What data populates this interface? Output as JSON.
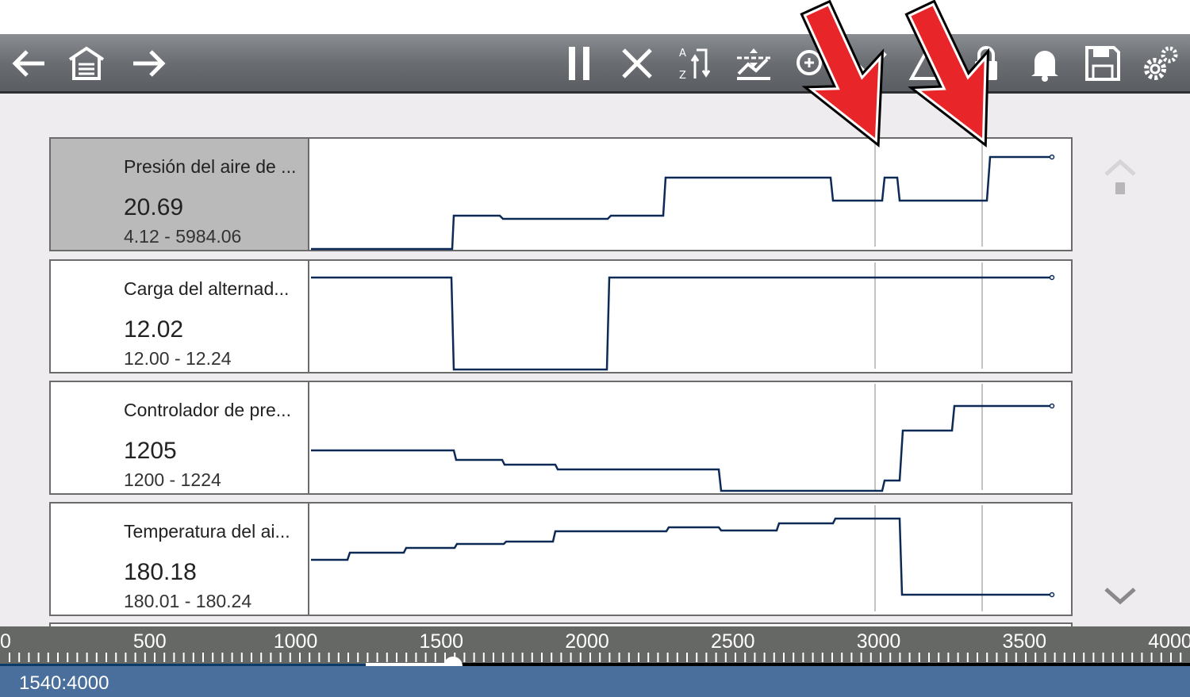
{
  "toolbar": {
    "left_icons": [
      "arrow-left-icon",
      "home-garage-icon",
      "arrow-right-icon"
    ],
    "right_icons": [
      "pause-icon",
      "close-icon",
      "sort-az-icon",
      "graph-threshold-icon",
      "zoom-graph-icon",
      "check-icon",
      "alert-icon",
      "lock-icon",
      "bell-icon",
      "save-icon",
      "settings-icon"
    ]
  },
  "parameters": [
    {
      "name": "Presión del aire de ...",
      "value": "20.69",
      "range": "4.12 - 5984.06",
      "selected": true
    },
    {
      "name": "Carga del alternad...",
      "value": "12.02",
      "range": "12.00 - 12.24",
      "selected": false
    },
    {
      "name": "Controlador de pre...",
      "value": "1205",
      "range": "1200 - 1224",
      "selected": false
    },
    {
      "name": "Temperatura del ai...",
      "value": "180.18",
      "range": "180.01 - 180.24",
      "selected": false
    }
  ],
  "ruler": {
    "labels": [
      "0",
      "500",
      "1000",
      "1500",
      "2000",
      "2500",
      "3000",
      "3500",
      "4000"
    ],
    "min": 0,
    "max": 4000
  },
  "slider": {
    "position": 1540,
    "total": 4000,
    "buffer_start": 1240
  },
  "status": {
    "text": "1540:4000"
  },
  "colors": {
    "trace": "#0c2a55",
    "arrow": "#e8262a",
    "status_bar": "#4a6f9c",
    "toolbar": "#6a6d72"
  }
}
